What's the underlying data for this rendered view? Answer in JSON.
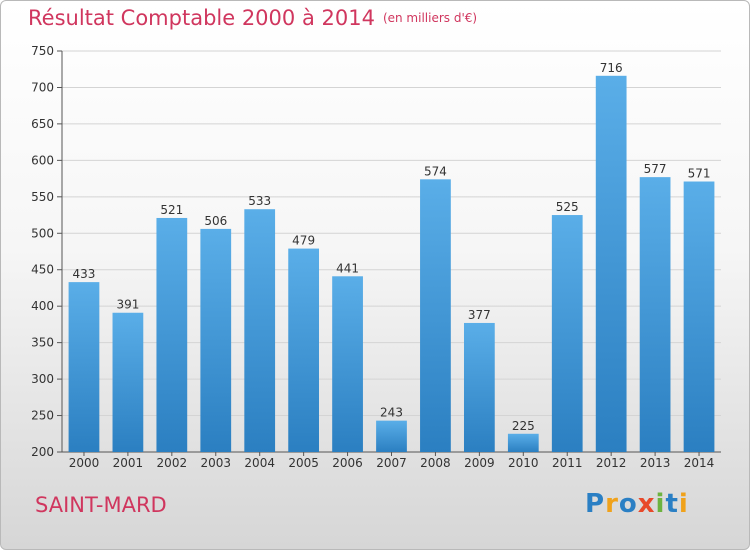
{
  "title": "Résultat Comptable 2000 à 2014",
  "unit_note": "(en milliers d'€)",
  "location": "SAINT-MARD",
  "brand": "Proxiti",
  "colors": {
    "title": "#d0365e",
    "bar_top": "#5aaee8",
    "bar_bottom": "#2b7fc1",
    "grid": "#d4d4d4",
    "brand_letters": [
      "#2a7fc4",
      "#f0a21b",
      "#2a7fc4",
      "#e8492a",
      "#6db33f",
      "#2a7fc4",
      "#f0a21b"
    ]
  },
  "chart_data": {
    "type": "bar",
    "title": "Résultat Comptable 2000 à 2014",
    "subtitle": "(en milliers d'€)",
    "xlabel": "",
    "ylabel": "",
    "categories": [
      "2000",
      "2001",
      "2002",
      "2003",
      "2004",
      "2005",
      "2006",
      "2007",
      "2008",
      "2009",
      "2010",
      "2011",
      "2012",
      "2013",
      "2014"
    ],
    "values": [
      433,
      391,
      521,
      506,
      533,
      479,
      441,
      243,
      574,
      377,
      225,
      525,
      716,
      577,
      571
    ],
    "ylim": [
      200,
      750
    ],
    "yticks": [
      200,
      250,
      300,
      350,
      400,
      450,
      500,
      550,
      600,
      650,
      700,
      750
    ],
    "grid": true,
    "data_labels": true,
    "legend": "none"
  }
}
